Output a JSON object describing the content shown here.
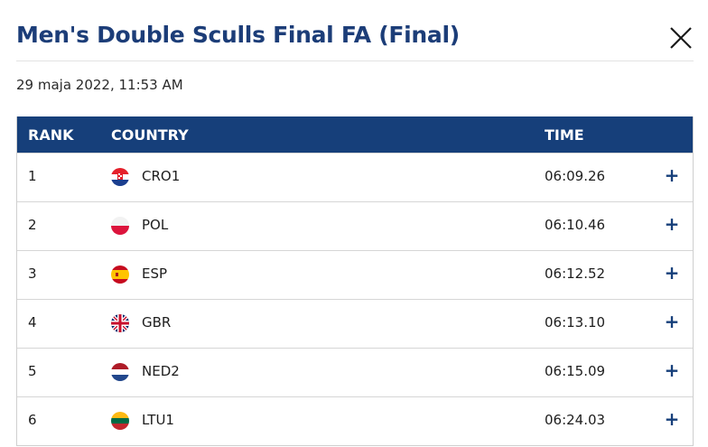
{
  "title": "Men's Double Sculls Final FA (Final)",
  "date": "29 maja 2022, 11:53 AM",
  "headers": {
    "rank": "RANK",
    "country": "COUNTRY",
    "time": "TIME"
  },
  "rows": [
    {
      "rank": "1",
      "country": "CRO1",
      "flag": "croatia-flag-icon",
      "time": "06:09.26",
      "expand": "+"
    },
    {
      "rank": "2",
      "country": "POL",
      "flag": "poland-flag-icon",
      "time": "06:10.46",
      "expand": "+"
    },
    {
      "rank": "3",
      "country": "ESP",
      "flag": "spain-flag-icon",
      "time": "06:12.52",
      "expand": "+"
    },
    {
      "rank": "4",
      "country": "GBR",
      "flag": "uk-flag-icon",
      "time": "06:13.10",
      "expand": "+"
    },
    {
      "rank": "5",
      "country": "NED2",
      "flag": "netherlands-flag-icon",
      "time": "06:15.09",
      "expand": "+"
    },
    {
      "rank": "6",
      "country": "LTU1",
      "flag": "lithuania-flag-icon",
      "time": "06:24.03",
      "expand": "+"
    }
  ],
  "colors": {
    "header_bg": "#163f7a",
    "title": "#1c3d78",
    "accent": "#163f7a"
  }
}
